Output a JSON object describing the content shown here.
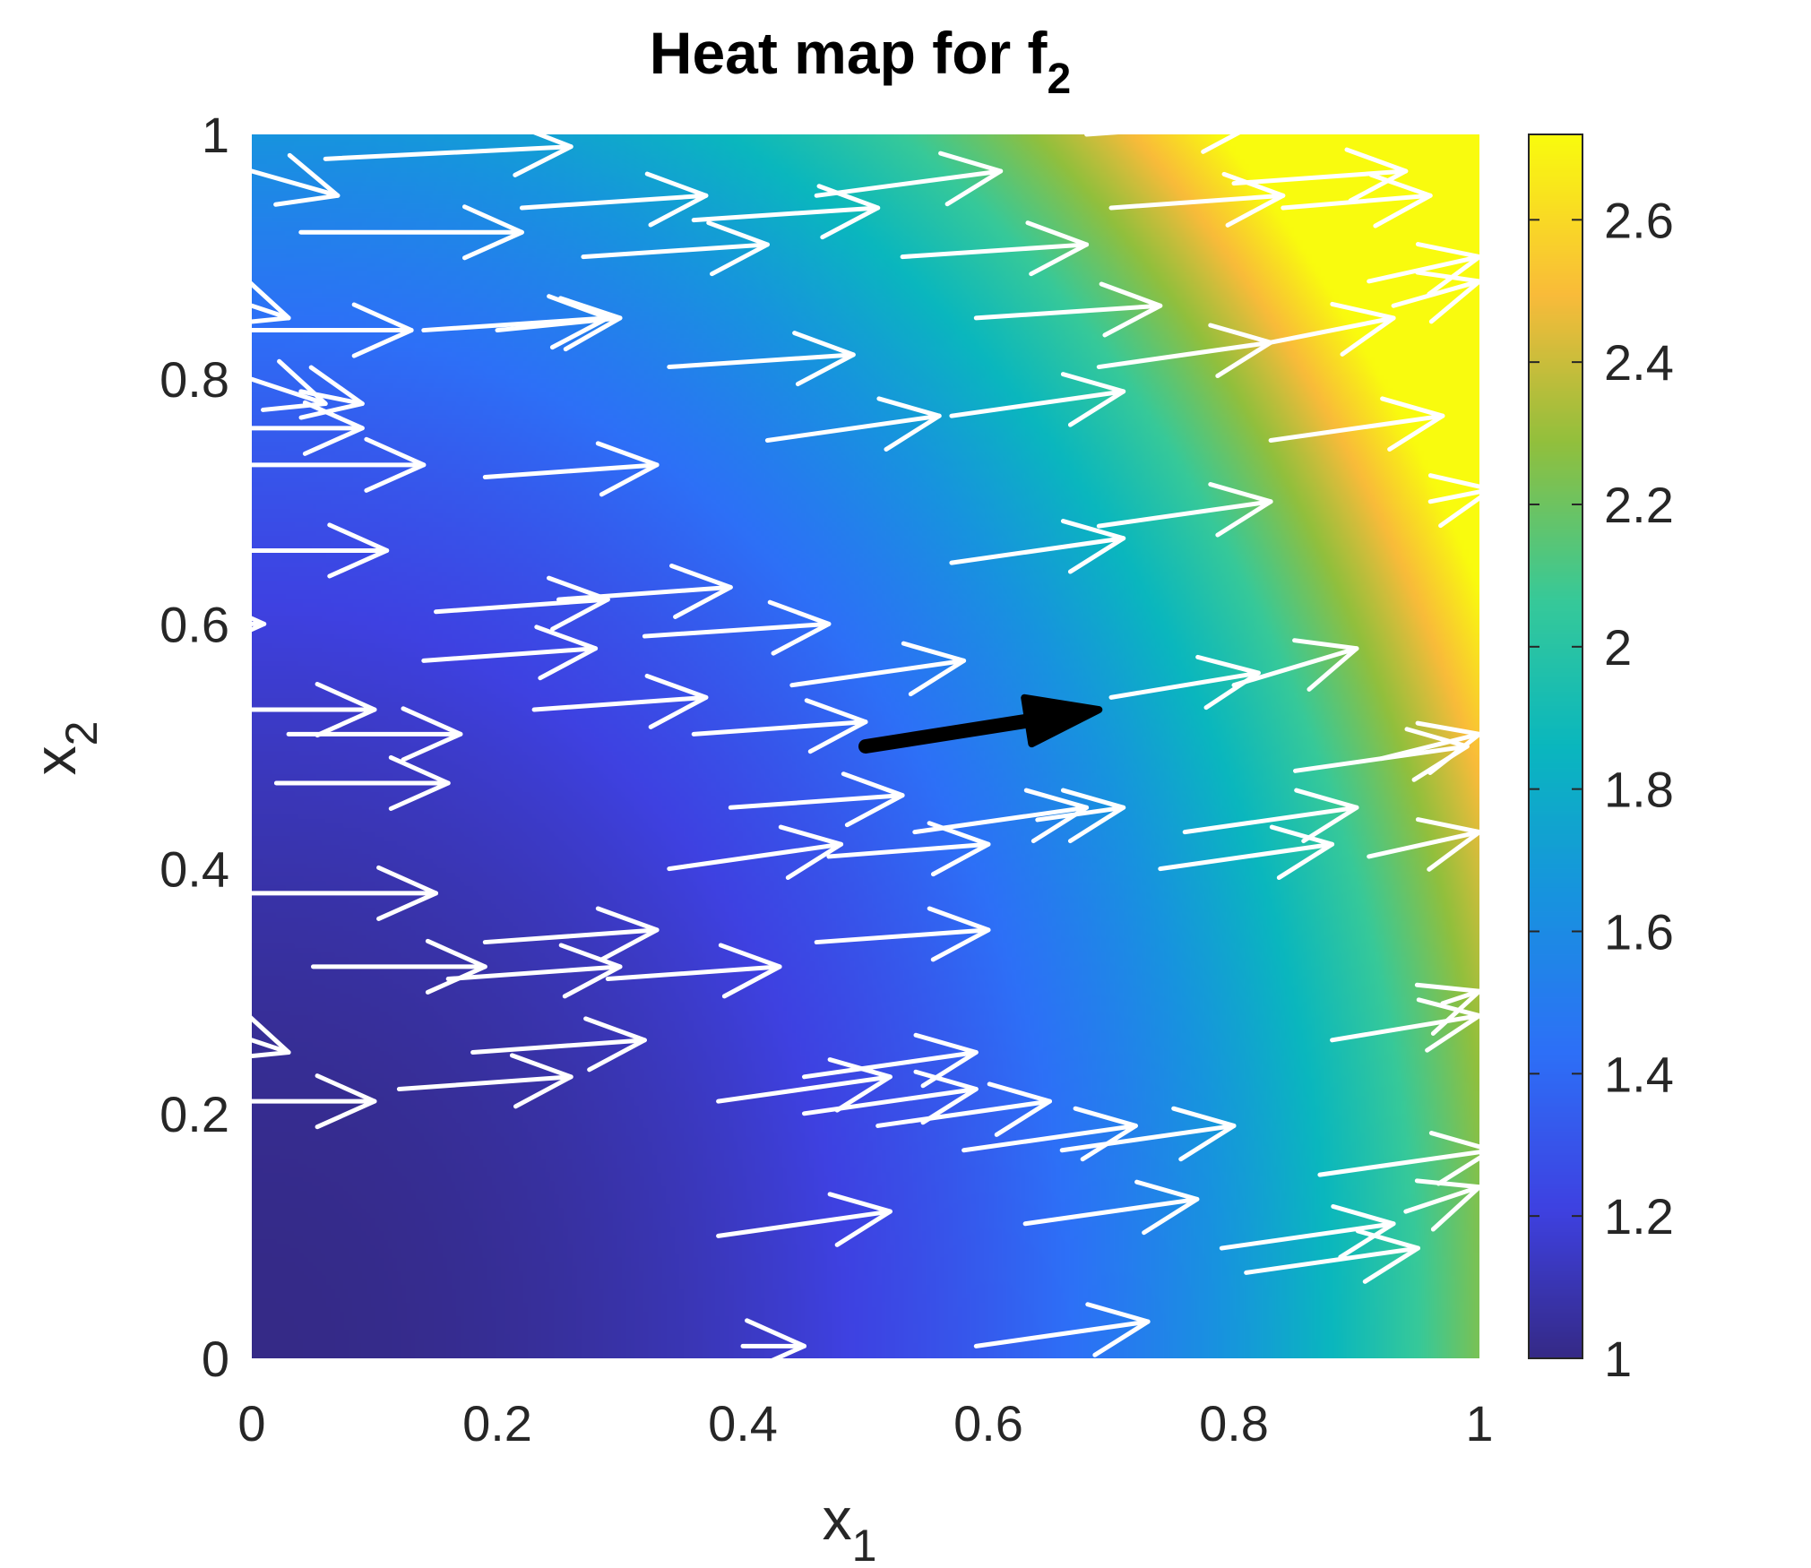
{
  "chart_data": {
    "type": "heatmap",
    "title": "Heat map for f",
    "title_subscript": "2",
    "xlabel": "x",
    "xlabel_subscript": "1",
    "ylabel": "x",
    "ylabel_subscript": "2",
    "xlim": [
      0,
      1
    ],
    "ylim": [
      0,
      1
    ],
    "xticks": [
      "0",
      "0.2",
      "0.4",
      "0.6",
      "0.8",
      "1"
    ],
    "yticks": [
      "0",
      "0.2",
      "0.4",
      "0.6",
      "0.8",
      "1"
    ],
    "colorbar": {
      "colormap": "parula",
      "range": [
        1,
        2.72
      ],
      "ticks": [
        "1",
        "1.2",
        "1.4",
        "1.6",
        "1.8",
        "2",
        "2.2",
        "2.4",
        "2.6"
      ]
    },
    "highlight_arrow": {
      "x": 0.5,
      "y": 0.5,
      "u": 0.19,
      "v": 0.03,
      "color": "#000000"
    },
    "arrow_color": "#ffffff",
    "arrows": [
      {
        "x": 0.0,
        "y": 0.97,
        "u": 0.07,
        "v": -0.02
      },
      {
        "x": 0.06,
        "y": 0.98,
        "u": 0.2,
        "v": 0.01
      },
      {
        "x": 0.04,
        "y": 0.92,
        "u": 0.18,
        "v": 0.0
      },
      {
        "x": 0.22,
        "y": 0.94,
        "u": 0.15,
        "v": 0.01
      },
      {
        "x": 0.27,
        "y": 0.9,
        "u": 0.15,
        "v": 0.01
      },
      {
        "x": 0.36,
        "y": 0.93,
        "u": 0.15,
        "v": 0.01
      },
      {
        "x": 0.46,
        "y": 0.95,
        "u": 0.15,
        "v": 0.02
      },
      {
        "x": 0.53,
        "y": 0.9,
        "u": 0.15,
        "v": 0.01
      },
      {
        "x": 0.68,
        "y": 1.0,
        "u": 0.14,
        "v": 0.01
      },
      {
        "x": 0.7,
        "y": 0.94,
        "u": 0.14,
        "v": 0.01
      },
      {
        "x": 0.8,
        "y": 0.96,
        "u": 0.14,
        "v": 0.01
      },
      {
        "x": 0.84,
        "y": 0.94,
        "u": 0.12,
        "v": 0.01
      },
      {
        "x": 0.91,
        "y": 0.88,
        "u": 0.09,
        "v": 0.02
      },
      {
        "x": 0.93,
        "y": 0.86,
        "u": 0.07,
        "v": 0.02
      },
      {
        "x": 0.0,
        "y": 0.86,
        "u": 0.03,
        "v": -0.01
      },
      {
        "x": 0.0,
        "y": 0.84,
        "u": 0.13,
        "v": 0.0
      },
      {
        "x": 0.14,
        "y": 0.84,
        "u": 0.15,
        "v": 0.01
      },
      {
        "x": 0.2,
        "y": 0.84,
        "u": 0.1,
        "v": 0.01
      },
      {
        "x": 0.34,
        "y": 0.81,
        "u": 0.15,
        "v": 0.01
      },
      {
        "x": 0.59,
        "y": 0.85,
        "u": 0.15,
        "v": 0.01
      },
      {
        "x": 0.69,
        "y": 0.81,
        "u": 0.14,
        "v": 0.02
      },
      {
        "x": 0.83,
        "y": 0.83,
        "u": 0.1,
        "v": 0.02
      },
      {
        "x": 0.0,
        "y": 0.8,
        "u": 0.06,
        "v": -0.02
      },
      {
        "x": 0.0,
        "y": 0.76,
        "u": 0.09,
        "v": 0.0
      },
      {
        "x": 0.04,
        "y": 0.79,
        "u": 0.05,
        "v": -0.01
      },
      {
        "x": 0.0,
        "y": 0.73,
        "u": 0.14,
        "v": 0.0
      },
      {
        "x": 0.19,
        "y": 0.72,
        "u": 0.14,
        "v": 0.01
      },
      {
        "x": 0.42,
        "y": 0.75,
        "u": 0.14,
        "v": 0.02
      },
      {
        "x": 0.57,
        "y": 0.77,
        "u": 0.14,
        "v": 0.02
      },
      {
        "x": 0.83,
        "y": 0.75,
        "u": 0.14,
        "v": 0.02
      },
      {
        "x": 0.96,
        "y": 0.7,
        "u": 0.05,
        "v": 0.01
      },
      {
        "x": 0.69,
        "y": 0.68,
        "u": 0.14,
        "v": 0.02
      },
      {
        "x": 0.0,
        "y": 0.66,
        "u": 0.11,
        "v": 0.0
      },
      {
        "x": 0.57,
        "y": 0.65,
        "u": 0.14,
        "v": 0.02
      },
      {
        "x": 0.15,
        "y": 0.61,
        "u": 0.14,
        "v": 0.01
      },
      {
        "x": 0.25,
        "y": 0.62,
        "u": 0.14,
        "v": 0.01
      },
      {
        "x": 0.32,
        "y": 0.59,
        "u": 0.15,
        "v": 0.01
      },
      {
        "x": 0.0,
        "y": 0.6,
        "u": 0.01,
        "v": 0.0
      },
      {
        "x": 0.14,
        "y": 0.57,
        "u": 0.14,
        "v": 0.01
      },
      {
        "x": 0.23,
        "y": 0.53,
        "u": 0.14,
        "v": 0.01
      },
      {
        "x": 0.44,
        "y": 0.55,
        "u": 0.14,
        "v": 0.02
      },
      {
        "x": 0.7,
        "y": 0.54,
        "u": 0.12,
        "v": 0.02
      },
      {
        "x": 0.8,
        "y": 0.55,
        "u": 0.1,
        "v": 0.03
      },
      {
        "x": 0.0,
        "y": 0.53,
        "u": 0.1,
        "v": 0.0
      },
      {
        "x": 0.03,
        "y": 0.51,
        "u": 0.14,
        "v": 0.0
      },
      {
        "x": 0.36,
        "y": 0.51,
        "u": 0.14,
        "v": 0.01
      },
      {
        "x": 0.85,
        "y": 0.48,
        "u": 0.14,
        "v": 0.02
      },
      {
        "x": 0.92,
        "y": 0.49,
        "u": 0.08,
        "v": 0.02
      },
      {
        "x": 0.02,
        "y": 0.47,
        "u": 0.14,
        "v": 0.0
      },
      {
        "x": 0.39,
        "y": 0.45,
        "u": 0.14,
        "v": 0.01
      },
      {
        "x": 0.54,
        "y": 0.43,
        "u": 0.14,
        "v": 0.02
      },
      {
        "x": 0.64,
        "y": 0.44,
        "u": 0.07,
        "v": 0.01
      },
      {
        "x": 0.76,
        "y": 0.43,
        "u": 0.14,
        "v": 0.02
      },
      {
        "x": 0.34,
        "y": 0.4,
        "u": 0.14,
        "v": 0.02
      },
      {
        "x": 0.47,
        "y": 0.41,
        "u": 0.13,
        "v": 0.01
      },
      {
        "x": 0.74,
        "y": 0.4,
        "u": 0.14,
        "v": 0.02
      },
      {
        "x": 0.91,
        "y": 0.41,
        "u": 0.09,
        "v": 0.02
      },
      {
        "x": 0.0,
        "y": 0.38,
        "u": 0.15,
        "v": 0.0
      },
      {
        "x": 0.19,
        "y": 0.34,
        "u": 0.14,
        "v": 0.01
      },
      {
        "x": 0.46,
        "y": 0.34,
        "u": 0.14,
        "v": 0.01
      },
      {
        "x": 0.05,
        "y": 0.32,
        "u": 0.14,
        "v": 0.0
      },
      {
        "x": 0.16,
        "y": 0.31,
        "u": 0.14,
        "v": 0.01
      },
      {
        "x": 0.29,
        "y": 0.31,
        "u": 0.14,
        "v": 0.01
      },
      {
        "x": 0.0,
        "y": 0.26,
        "u": 0.03,
        "v": -0.01
      },
      {
        "x": 0.18,
        "y": 0.25,
        "u": 0.14,
        "v": 0.01
      },
      {
        "x": 0.88,
        "y": 0.26,
        "u": 0.12,
        "v": 0.02
      },
      {
        "x": 0.97,
        "y": 0.29,
        "u": 0.03,
        "v": 0.01
      },
      {
        "x": 0.12,
        "y": 0.22,
        "u": 0.14,
        "v": 0.01
      },
      {
        "x": 0.45,
        "y": 0.23,
        "u": 0.14,
        "v": 0.02
      },
      {
        "x": 0.38,
        "y": 0.21,
        "u": 0.14,
        "v": 0.02
      },
      {
        "x": 0.45,
        "y": 0.2,
        "u": 0.14,
        "v": 0.02
      },
      {
        "x": 0.51,
        "y": 0.19,
        "u": 0.14,
        "v": 0.02
      },
      {
        "x": 0.58,
        "y": 0.17,
        "u": 0.14,
        "v": 0.02
      },
      {
        "x": 0.66,
        "y": 0.17,
        "u": 0.14,
        "v": 0.02
      },
      {
        "x": 0.0,
        "y": 0.21,
        "u": 0.1,
        "v": 0.0
      },
      {
        "x": 0.87,
        "y": 0.15,
        "u": 0.14,
        "v": 0.02
      },
      {
        "x": 0.94,
        "y": 0.12,
        "u": 0.06,
        "v": 0.02
      },
      {
        "x": 0.38,
        "y": 0.1,
        "u": 0.14,
        "v": 0.02
      },
      {
        "x": 0.63,
        "y": 0.11,
        "u": 0.14,
        "v": 0.02
      },
      {
        "x": 0.79,
        "y": 0.09,
        "u": 0.14,
        "v": 0.02
      },
      {
        "x": 0.81,
        "y": 0.07,
        "u": 0.14,
        "v": 0.02
      },
      {
        "x": 0.59,
        "y": 0.01,
        "u": 0.14,
        "v": 0.02
      },
      {
        "x": 0.4,
        "y": 0.01,
        "u": 0.05,
        "v": 0.0
      }
    ]
  }
}
